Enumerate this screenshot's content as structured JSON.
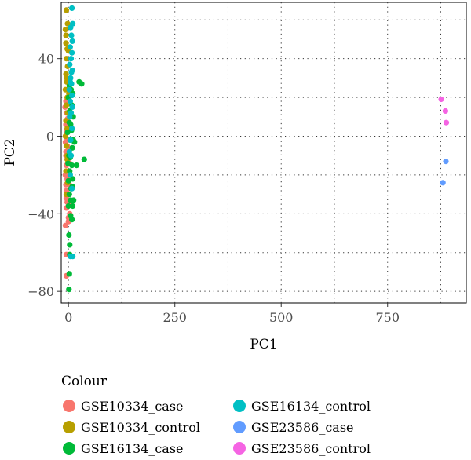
{
  "chart_data": {
    "type": "scatter",
    "xlabel": "PC1",
    "ylabel": "PC2",
    "xlim": [
      -17,
      935
    ],
    "ylim": [
      -86,
      69
    ],
    "x_ticks": [
      0,
      250,
      500,
      750
    ],
    "y_ticks": [
      -80,
      -40,
      0,
      40
    ],
    "x_tick_labels": [
      "0",
      "250",
      "500",
      "750"
    ],
    "y_tick_labels": [
      "−80",
      "−40",
      "0",
      "40"
    ],
    "grid": true,
    "legend_title": "Colour",
    "legend_position": "bottom",
    "series": [
      {
        "name": "GSE10334_case",
        "color": "#F8766D",
        "points": [
          [
            -5,
            -61
          ],
          [
            -5,
            -72
          ],
          [
            -7,
            -46
          ],
          [
            0,
            -42
          ],
          [
            -7,
            -20
          ],
          [
            -3,
            -34
          ],
          [
            -5,
            -37
          ],
          [
            2,
            -34
          ],
          [
            -6,
            -25
          ],
          [
            -3,
            -22
          ],
          [
            0,
            -18
          ],
          [
            -5,
            -15
          ],
          [
            -2,
            -12
          ],
          [
            -6,
            -8
          ],
          [
            -3,
            -5
          ],
          [
            -7,
            0
          ],
          [
            -4,
            3
          ],
          [
            -6,
            6
          ],
          [
            -2,
            9
          ],
          [
            -5,
            12
          ],
          [
            -3,
            -2
          ],
          [
            -6,
            -10
          ],
          [
            -4,
            -28
          ],
          [
            -1,
            -30
          ],
          [
            -5,
            -32
          ],
          [
            2,
            -25
          ],
          [
            0,
            -6
          ],
          [
            3,
            -14
          ],
          [
            -8,
            15
          ],
          [
            -6,
            18
          ],
          [
            -3,
            2
          ],
          [
            1,
            5
          ],
          [
            -7,
            -3
          ],
          [
            0,
            -44
          ],
          [
            3,
            -40
          ]
        ]
      },
      {
        "name": "GSE10334_control",
        "color": "#B79F00",
        "points": [
          [
            -5,
            65
          ],
          [
            -7,
            55
          ],
          [
            -2,
            58
          ],
          [
            -6,
            48
          ],
          [
            -3,
            45
          ],
          [
            -5,
            40
          ],
          [
            -2,
            36
          ],
          [
            -6,
            32
          ],
          [
            -4,
            28
          ],
          [
            -7,
            24
          ],
          [
            -3,
            20
          ],
          [
            -5,
            16
          ],
          [
            -2,
            12
          ],
          [
            -6,
            8
          ],
          [
            -3,
            4
          ],
          [
            -7,
            0
          ],
          [
            -5,
            -5
          ],
          [
            -3,
            -12
          ],
          [
            -6,
            -18
          ],
          [
            -2,
            -24
          ],
          [
            -5,
            -30
          ],
          [
            -3,
            -10
          ],
          [
            -6,
            52
          ],
          [
            0,
            44
          ],
          [
            -4,
            30
          ],
          [
            1,
            22
          ]
        ]
      },
      {
        "name": "GSE16134_case",
        "color": "#00BA38",
        "points": [
          [
            1,
            -79
          ],
          [
            2,
            -71
          ],
          [
            3,
            -61
          ],
          [
            3,
            -56
          ],
          [
            1,
            -51
          ],
          [
            5,
            -41
          ],
          [
            8,
            -43
          ],
          [
            0,
            -36
          ],
          [
            5,
            -33
          ],
          [
            10,
            -36
          ],
          [
            2,
            -30
          ],
          [
            7,
            -27
          ],
          [
            0,
            -23
          ],
          [
            10,
            -22
          ],
          [
            3,
            -18
          ],
          [
            8,
            -15
          ],
          [
            1,
            -10
          ],
          [
            9,
            -6
          ],
          [
            4,
            -2
          ],
          [
            -2,
            2
          ],
          [
            7,
            3
          ],
          [
            2,
            7
          ],
          [
            11,
            10
          ],
          [
            3,
            13
          ],
          [
            8,
            16
          ],
          [
            0,
            20
          ],
          [
            6,
            24
          ],
          [
            10,
            22
          ],
          [
            2,
            26
          ],
          [
            31,
            27
          ],
          [
            25,
            28
          ],
          [
            37,
            -12
          ],
          [
            19,
            -15
          ],
          [
            11,
            -2
          ],
          [
            6,
            -27
          ],
          [
            12,
            -33
          ],
          [
            4,
            -11
          ],
          [
            -1,
            -14
          ],
          [
            9,
            -26
          ],
          [
            5,
            6
          ],
          [
            14,
            -3
          ]
        ]
      },
      {
        "name": "GSE16134_control",
        "color": "#00BFC4",
        "points": [
          [
            8,
            66
          ],
          [
            10,
            58
          ],
          [
            5,
            56
          ],
          [
            7,
            52
          ],
          [
            9,
            49
          ],
          [
            4,
            46
          ],
          [
            8,
            43
          ],
          [
            6,
            40
          ],
          [
            3,
            37
          ],
          [
            9,
            34
          ],
          [
            5,
            30
          ],
          [
            7,
            27
          ],
          [
            2,
            24
          ],
          [
            8,
            21
          ],
          [
            4,
            18
          ],
          [
            9,
            15
          ],
          [
            6,
            12
          ],
          [
            3,
            10
          ],
          [
            8,
            4
          ],
          [
            5,
            -2
          ],
          [
            6,
            -10
          ],
          [
            4,
            -20
          ],
          [
            8,
            -27
          ],
          [
            5,
            -62
          ],
          [
            10,
            -62
          ],
          [
            2,
            -8
          ],
          [
            7,
            33
          ],
          [
            4,
            28
          ]
        ]
      },
      {
        "name": "GSE23586_case",
        "color": "#619CFF",
        "points": [
          [
            887,
            -13
          ],
          [
            880,
            -24
          ]
        ]
      },
      {
        "name": "GSE23586_control",
        "color": "#F564E3",
        "points": [
          [
            876,
            19
          ],
          [
            886,
            13
          ],
          [
            888,
            7
          ]
        ]
      }
    ]
  }
}
